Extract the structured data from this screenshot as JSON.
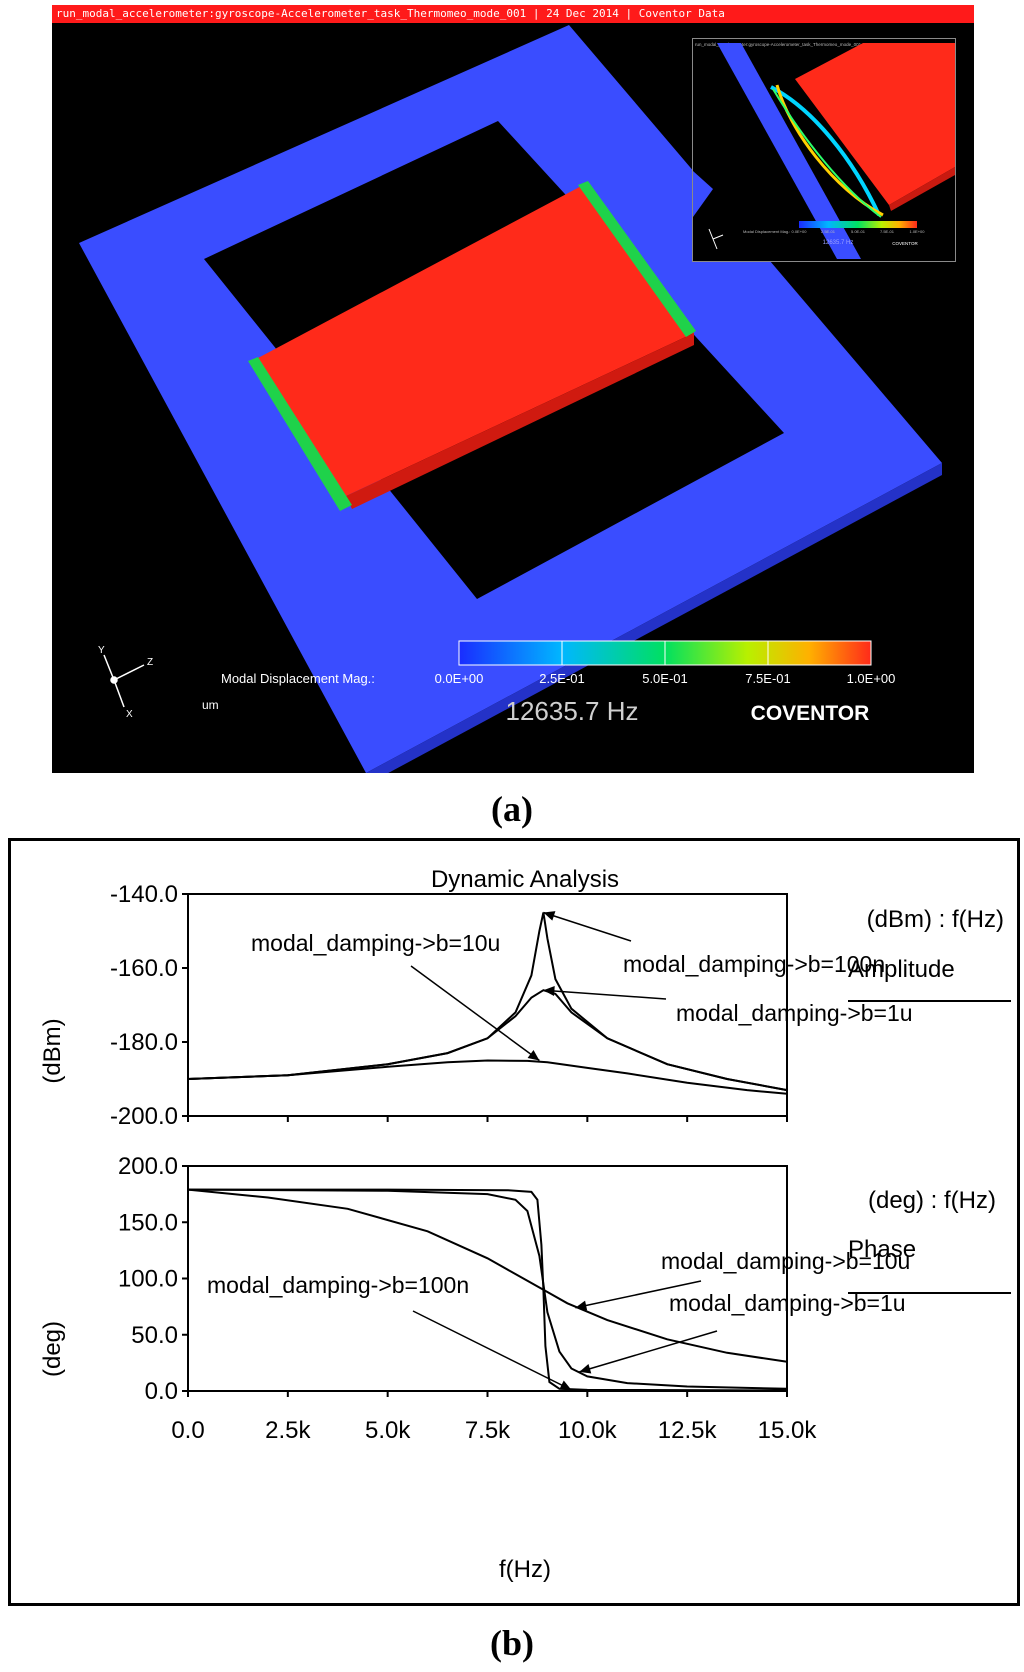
{
  "viewer": {
    "title": "run_modal_accelerometer:gyroscope-Accelerometer_task_Thermomeo_mode_001 | 24 Dec 2014 | Coventor Data",
    "colorbar_title": "Modal Displacement Mag.:",
    "colorbar_ticks": [
      "0.0E+00",
      "2.5E-01",
      "5.0E-01",
      "7.5E-01",
      "1.0E+00"
    ],
    "colorbar_colors": [
      "#1a2cff",
      "#00b7ff",
      "#00e060",
      "#b8f000",
      "#ffb000",
      "#ff2a1a"
    ],
    "frequency": "12635.7 Hz",
    "brand": "COVENTOR",
    "unit": "um",
    "axis_labels": [
      "Y",
      "Z",
      "X"
    ],
    "frame_color": "#3a4dff",
    "mass_color": "#ff2a1a",
    "inset": {
      "title": "run_modal_accelerometer:gyroscope-Accelerometer_task_Thermomeo_mode_001",
      "colorbar_title": "Modal Displacement Mag.:",
      "colorbar_ticks": [
        "0.0E+00",
        "2.5E-01",
        "5.0E-01",
        "7.5E-01",
        "1.0E+00"
      ],
      "frequency": "12635.7 Hz",
      "brand": "COVENTOR"
    }
  },
  "panel_labels": {
    "a": "(a)",
    "b": "(b)"
  },
  "chart_data": [
    {
      "type": "line",
      "title": "Dynamic Analysis",
      "units_label": "(dBm) : f(Hz)",
      "legend_title": "Amplitude",
      "xlabel": "f(Hz)",
      "ylabel": "(dBm)",
      "xlim": [
        0,
        15000
      ],
      "ylim": [
        -200,
        -140
      ],
      "x_ticks": [
        "0.0",
        "2.5k",
        "5.0k",
        "7.5k",
        "10.0k",
        "12.5k",
        "15.0k"
      ],
      "y_ticks": [
        "-140.0",
        "-160.0",
        "-180.0",
        "-200.0"
      ],
      "y_tick_values": [
        -140,
        -160,
        -180,
        -200
      ],
      "series": [
        {
          "name": "modal_damping->b=100n",
          "x": [
            0,
            2500,
            5000,
            6500,
            7500,
            8200,
            8600,
            8800,
            8900,
            9000,
            9200,
            9600,
            10500,
            12000,
            13500,
            15000
          ],
          "y": [
            -190,
            -189,
            -186,
            -183,
            -179,
            -172,
            -162,
            -150,
            -145,
            -152,
            -163,
            -171,
            -179,
            -186,
            -190,
            -193
          ]
        },
        {
          "name": "modal_damping->b=1u",
          "x": [
            0,
            2500,
            5000,
            6500,
            7500,
            8200,
            8600,
            8900,
            9200,
            9600,
            10500,
            12000,
            13500,
            15000
          ],
          "y": [
            -190,
            -189,
            -186,
            -183,
            -179,
            -173,
            -168,
            -166,
            -167,
            -172,
            -179,
            -186,
            -190,
            -193
          ]
        },
        {
          "name": "modal_damping->b=10u",
          "x": [
            0,
            2500,
            5000,
            6500,
            7500,
            8500,
            9000,
            10000,
            11000,
            12500,
            14000,
            15000
          ],
          "y": [
            -190,
            -189,
            -186.7,
            -185.5,
            -185,
            -185.1,
            -185.5,
            -187,
            -188.5,
            -191,
            -193,
            -194
          ]
        }
      ],
      "annotations": [
        {
          "text": "modal_damping->b=10u",
          "x": 8800,
          "y": -185
        },
        {
          "text": "modal_damping->b=100n",
          "x": 8900,
          "y": -145
        },
        {
          "text": "modal_damping->b=1u",
          "x": 8900,
          "y": -166
        }
      ]
    },
    {
      "type": "line",
      "units_label": "(deg) : f(Hz)",
      "legend_title": "Phase",
      "xlabel": "f(Hz)",
      "ylabel": "(deg)",
      "xlim": [
        0,
        15000
      ],
      "ylim": [
        0,
        200
      ],
      "x_ticks": [
        "0.0",
        "2.5k",
        "5.0k",
        "7.5k",
        "10.0k",
        "12.5k",
        "15.0k"
      ],
      "y_ticks": [
        "200.0",
        "150.0",
        "100.0",
        "50.0",
        "0.0"
      ],
      "y_tick_values": [
        200,
        150,
        100,
        50,
        0
      ],
      "series": [
        {
          "name": "modal_damping->b=100n",
          "x": [
            0,
            5000,
            8000,
            8600,
            8750,
            8850,
            8900,
            8950,
            9050,
            9300,
            10000,
            15000
          ],
          "y": [
            179,
            179,
            178.5,
            177,
            170,
            130,
            90,
            40,
            8,
            2,
            1,
            0.5
          ]
        },
        {
          "name": "modal_damping->b=1u",
          "x": [
            0,
            5000,
            7500,
            8200,
            8500,
            8800,
            9000,
            9300,
            9600,
            10000,
            11000,
            12500,
            15000
          ],
          "y": [
            179,
            178,
            175,
            170,
            160,
            120,
            70,
            35,
            20,
            13,
            7,
            4,
            2
          ]
        },
        {
          "name": "modal_damping->b=10u",
          "x": [
            0,
            2000,
            4000,
            6000,
            7500,
            8500,
            9000,
            9500,
            10500,
            12000,
            13500,
            15000
          ],
          "y": [
            179,
            172,
            162,
            142,
            118,
            98,
            88,
            78,
            63,
            46,
            34,
            26
          ]
        }
      ],
      "annotations": [
        {
          "text": "modal_damping->b=100n",
          "x": 9600,
          "y": 1
        },
        {
          "text": "modal_damping->b=10u",
          "x": 9700,
          "y": 74
        },
        {
          "text": "modal_damping->b=1u",
          "x": 9800,
          "y": 17
        }
      ]
    }
  ]
}
